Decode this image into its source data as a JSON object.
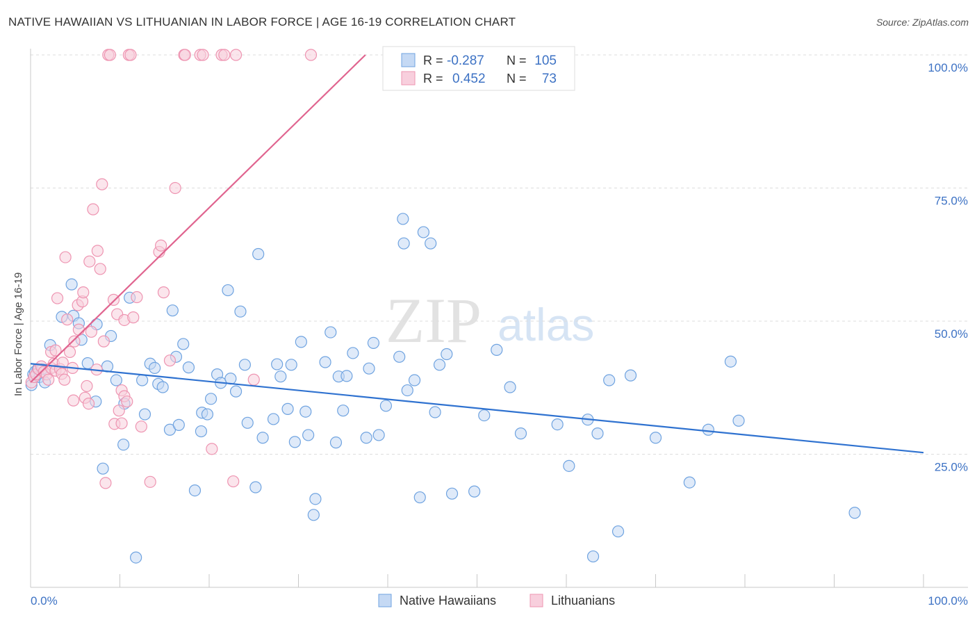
{
  "header": {
    "title": "NATIVE HAWAIIAN VS LITHUANIAN IN LABOR FORCE | AGE 16-19 CORRELATION CHART",
    "source": "Source: ZipAtlas.com"
  },
  "watermark": {
    "zip": "ZIP",
    "atlas": "atlas"
  },
  "colors": {
    "blue": "#6fa3e0",
    "blue_fill": "#c5d9f4",
    "blue_line": "#2f72d0",
    "pink": "#ee94b1",
    "pink_fill": "#f8cfdd",
    "pink_line": "#e0648f",
    "tick_text": "#3d72c4",
    "grid": "#dddddd"
  },
  "legend": {
    "r_label": "R =",
    "n_label": "N =",
    "series": [
      {
        "name": "Native Hawaiians",
        "r": "-0.287",
        "n": "105"
      },
      {
        "name": "Lithuanians",
        "r": "0.452",
        "n": "73"
      }
    ]
  },
  "chart_data": {
    "type": "scatter",
    "title": "NATIVE HAWAIIAN VS LITHUANIAN IN LABOR FORCE | AGE 16-19 CORRELATION CHART",
    "xlabel": "",
    "ylabel": "In Labor Force | Age 16-19",
    "xlim": [
      0,
      100
    ],
    "ylim": [
      0,
      100
    ],
    "x_tick_labels": [
      "0.0%",
      "100.0%"
    ],
    "y_ticks": [
      25,
      50,
      75,
      100
    ],
    "y_tick_labels": [
      "25.0%",
      "50.0%",
      "75.0%",
      "100.0%"
    ],
    "grid": true,
    "series": [
      {
        "name": "Native Hawaiians",
        "trend": {
          "x": [
            0,
            100
          ],
          "y": [
            42.0,
            25.3
          ]
        },
        "points": [
          [
            0.1,
            38
          ],
          [
            0.3,
            40
          ],
          [
            0.5,
            40.5
          ],
          [
            0.8,
            41
          ],
          [
            1.0,
            39.5
          ],
          [
            1.3,
            41
          ],
          [
            1.6,
            38.5
          ],
          [
            2.2,
            45.5
          ],
          [
            3.5,
            50.8
          ],
          [
            4.8,
            51
          ],
          [
            4.6,
            56.9
          ],
          [
            5.4,
            49.6
          ],
          [
            5.7,
            46.5
          ],
          [
            6.4,
            42.1
          ],
          [
            7.3,
            34.9
          ],
          [
            7.4,
            49.4
          ],
          [
            8.1,
            22.3
          ],
          [
            8.6,
            41.5
          ],
          [
            9.0,
            47.2
          ],
          [
            9.6,
            38.9
          ],
          [
            10.4,
            26.8
          ],
          [
            10.5,
            34.5
          ],
          [
            11.1,
            54.4
          ],
          [
            11.8,
            5.6
          ],
          [
            12.5,
            38.9
          ],
          [
            12.8,
            32.5
          ],
          [
            13.4,
            42
          ],
          [
            13.9,
            41.2
          ],
          [
            14.3,
            38.2
          ],
          [
            14.8,
            37.6
          ],
          [
            15.6,
            29.6
          ],
          [
            15.9,
            52
          ],
          [
            16.3,
            43.3
          ],
          [
            16.6,
            30.5
          ],
          [
            17.1,
            45.7
          ],
          [
            17.7,
            41.3
          ],
          [
            18.4,
            18.2
          ],
          [
            19.1,
            29.3
          ],
          [
            19.2,
            32.8
          ],
          [
            19.8,
            32.5
          ],
          [
            20.2,
            35.4
          ],
          [
            20.9,
            40
          ],
          [
            21.3,
            38.4
          ],
          [
            22.1,
            55.8
          ],
          [
            22.4,
            39.2
          ],
          [
            23.0,
            36.8
          ],
          [
            23.5,
            51.8
          ],
          [
            24.0,
            41.8
          ],
          [
            24.3,
            30.9
          ],
          [
            25.2,
            18.8
          ],
          [
            25.5,
            62.6
          ],
          [
            26.0,
            28.1
          ],
          [
            27.2,
            31.6
          ],
          [
            27.6,
            41.9
          ],
          [
            28.0,
            39.6
          ],
          [
            28.8,
            33.5
          ],
          [
            29.2,
            41.8
          ],
          [
            29.6,
            27.3
          ],
          [
            30.3,
            46.1
          ],
          [
            30.8,
            33
          ],
          [
            31.1,
            28.6
          ],
          [
            31.7,
            13.6
          ],
          [
            31.9,
            16.6
          ],
          [
            33.0,
            42.3
          ],
          [
            33.6,
            47.9
          ],
          [
            34.2,
            27.2
          ],
          [
            34.5,
            39.6
          ],
          [
            35.0,
            33.2
          ],
          [
            35.4,
            39.7
          ],
          [
            36.1,
            44
          ],
          [
            37.6,
            28.1
          ],
          [
            37.9,
            41.1
          ],
          [
            38.4,
            45.9
          ],
          [
            39.0,
            28.6
          ],
          [
            39.8,
            34.1
          ],
          [
            41.3,
            43.3
          ],
          [
            41.7,
            69.2
          ],
          [
            41.8,
            64.6
          ],
          [
            42.2,
            37
          ],
          [
            43.0,
            38.9
          ],
          [
            43.6,
            16.9
          ],
          [
            44.0,
            66.7
          ],
          [
            44.8,
            64.6
          ],
          [
            45.3,
            32.9
          ],
          [
            45.8,
            41.8
          ],
          [
            46.6,
            43.8
          ],
          [
            47.2,
            17.6
          ],
          [
            49.7,
            18
          ],
          [
            50.8,
            32.3
          ],
          [
            52.2,
            44.6
          ],
          [
            53.7,
            37.6
          ],
          [
            54.9,
            28.9
          ],
          [
            59.0,
            30.6
          ],
          [
            60.3,
            22.8
          ],
          [
            62.4,
            31.5
          ],
          [
            63.0,
            5.8
          ],
          [
            63.5,
            28.9
          ],
          [
            64.8,
            38.9
          ],
          [
            65.8,
            10.5
          ],
          [
            67.2,
            39.8
          ],
          [
            70.0,
            28.1
          ],
          [
            73.8,
            19.7
          ],
          [
            75.9,
            29.6
          ],
          [
            78.4,
            42.4
          ],
          [
            79.3,
            31.3
          ],
          [
            92.3,
            14
          ]
        ]
      },
      {
        "name": "Lithuanians",
        "trend": {
          "x": [
            0,
            37.5
          ],
          "y": [
            38.5,
            100
          ]
        },
        "points": [
          [
            0.1,
            38.5
          ],
          [
            0.4,
            39.5
          ],
          [
            0.6,
            40
          ],
          [
            0.9,
            41
          ],
          [
            1.2,
            41.5
          ],
          [
            1.5,
            40.5
          ],
          [
            1.8,
            40
          ],
          [
            2.0,
            39
          ],
          [
            2.3,
            41.2
          ],
          [
            2.6,
            42
          ],
          [
            2.3,
            44.2
          ],
          [
            2.8,
            40.7
          ],
          [
            3.3,
            41
          ],
          [
            3.6,
            42.2
          ],
          [
            2.8,
            44.5
          ],
          [
            3.0,
            54.3
          ],
          [
            3.5,
            40.1
          ],
          [
            3.8,
            39
          ],
          [
            3.9,
            62
          ],
          [
            4.1,
            50.3
          ],
          [
            4.4,
            44.2
          ],
          [
            4.7,
            41.2
          ],
          [
            4.8,
            35.1
          ],
          [
            4.9,
            46.2
          ],
          [
            5.3,
            53
          ],
          [
            5.4,
            48.4
          ],
          [
            5.8,
            53.7
          ],
          [
            5.9,
            55.4
          ],
          [
            6.1,
            35.6
          ],
          [
            6.3,
            37.8
          ],
          [
            6.5,
            34.5
          ],
          [
            6.6,
            61.2
          ],
          [
            6.8,
            48
          ],
          [
            7.0,
            71
          ],
          [
            7.4,
            40.9
          ],
          [
            7.5,
            63.2
          ],
          [
            7.8,
            59.8
          ],
          [
            8.2,
            46.2
          ],
          [
            8.0,
            75.7
          ],
          [
            8.4,
            19.6
          ],
          [
            8.7,
            100
          ],
          [
            8.9,
            100
          ],
          [
            9.3,
            54
          ],
          [
            9.4,
            30.7
          ],
          [
            9.7,
            51.3
          ],
          [
            9.9,
            33.2
          ],
          [
            10.2,
            37
          ],
          [
            10.2,
            30.8
          ],
          [
            10.5,
            35.9
          ],
          [
            10.5,
            50.2
          ],
          [
            10.8,
            34.9
          ],
          [
            11.0,
            100
          ],
          [
            11.2,
            100
          ],
          [
            11.5,
            50.7
          ],
          [
            11.9,
            54.5
          ],
          [
            12.4,
            30.2
          ],
          [
            13.4,
            19.8
          ],
          [
            14.4,
            63
          ],
          [
            14.6,
            64.2
          ],
          [
            14.9,
            55.4
          ],
          [
            15.6,
            42.6
          ],
          [
            16.2,
            75
          ],
          [
            17.2,
            100
          ],
          [
            17.3,
            100
          ],
          [
            19.0,
            100
          ],
          [
            19.3,
            100
          ],
          [
            20.3,
            26
          ],
          [
            21.4,
            100
          ],
          [
            21.7,
            100
          ],
          [
            22.7,
            19.9
          ],
          [
            23.0,
            100
          ],
          [
            25.0,
            39
          ],
          [
            31.4,
            100
          ]
        ]
      }
    ]
  }
}
